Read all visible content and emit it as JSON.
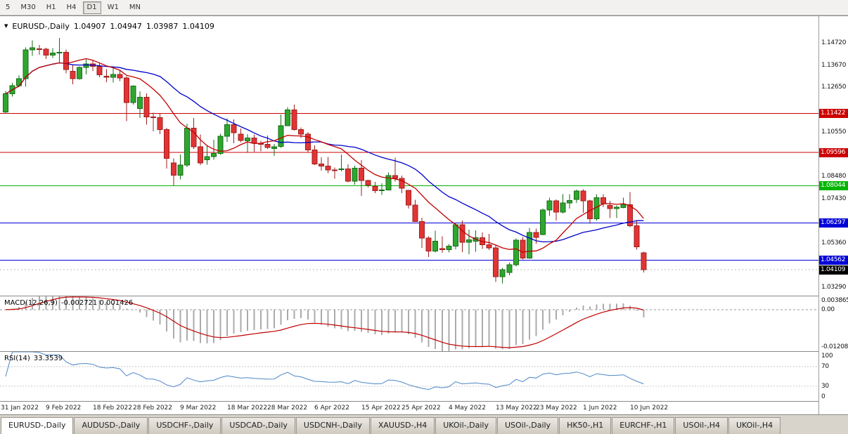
{
  "toolbar": {
    "timeframes": [
      {
        "label": "5",
        "active": false
      },
      {
        "label": "M30",
        "active": false
      },
      {
        "label": "H1",
        "active": false
      },
      {
        "label": "H4",
        "active": false
      },
      {
        "label": "D1",
        "active": true
      },
      {
        "label": "W1",
        "active": false
      },
      {
        "label": "MN",
        "active": false
      }
    ]
  },
  "chart": {
    "title": {
      "icon": "▼",
      "symbol": "EURUSD-,Daily",
      "open": "1.04907",
      "high": "1.04947",
      "low": "1.03987",
      "close": "1.04109"
    },
    "price_axis_ticks": [
      "1.14720",
      "1.13670",
      "1.12650",
      "1.10550",
      "1.08480",
      "1.07430",
      "1.05360",
      "1.03290"
    ],
    "levels": [
      {
        "value": "1.11422",
        "price": 1.11422,
        "color": "#CC0000"
      },
      {
        "value": "1.09596",
        "price": 1.09596,
        "color": "#CC0000"
      },
      {
        "value": "1.08044",
        "price": 1.08044,
        "color": "#00B400"
      },
      {
        "value": "1.06297",
        "price": 1.06297,
        "color": "#0000D8"
      },
      {
        "value": "1.04562",
        "price": 1.04562,
        "color": "#0000D8"
      }
    ],
    "current_price": {
      "value": "1.04109",
      "price": 1.04109,
      "badge_color": "#000000"
    },
    "colors": {
      "up": "#2FA62F",
      "up_border": "#156E15",
      "down": "#E23434",
      "down_border": "#9E1F1F"
    }
  },
  "macd": {
    "label": "MACD(12,26,9)",
    "values": "-0.002721 0.001426",
    "fast": 12,
    "slow": 26,
    "signal": 9,
    "axis_max": "0.003865",
    "axis_zero": "0.00",
    "axis_min": "-0.01208",
    "ylim": [
      -0.01208,
      0.003865
    ],
    "bar_color": "#ABABAB",
    "signal_color": "#C00000"
  },
  "rsi": {
    "label": "RSI(14)",
    "value": "33.3539",
    "period": 14,
    "axis": [
      "100",
      "70",
      "30",
      "0"
    ],
    "levels": [
      70,
      30
    ],
    "line_color": "#4C86C6"
  },
  "tabs": [
    {
      "label": "EURUSD-,Daily",
      "active": true
    },
    {
      "label": "AUDUSD-,Daily",
      "active": false
    },
    {
      "label": "USDCHF-,Daily",
      "active": false
    },
    {
      "label": "USDCAD-,Daily",
      "active": false
    },
    {
      "label": "USDCNH-,Daily",
      "active": false
    },
    {
      "label": "XAUUSD-,H4",
      "active": false
    },
    {
      "label": "UKOil-,Daily",
      "active": false
    },
    {
      "label": "USOil-,Daily",
      "active": false
    },
    {
      "label": "HK50-,H1",
      "active": false
    },
    {
      "label": "EURCHF-,H1",
      "active": false
    },
    {
      "label": "USOil-,H4",
      "active": false
    },
    {
      "label": "UKOil-,H4",
      "active": false
    }
  ],
  "chart_data": {
    "type": "candlestick",
    "title": "EURUSD-,Daily",
    "ylim": [
      1.029,
      1.1597
    ],
    "ma": [
      {
        "name": "MA slow",
        "period": 21,
        "color": "#0000C8"
      },
      {
        "name": "MA fast",
        "period": 10,
        "color": "#C00000"
      }
    ],
    "x_ticks": [
      {
        "label": "31 Jan 2022",
        "i": 0
      },
      {
        "label": "9 Feb 2022",
        "i": 7
      },
      {
        "label": "18 Feb 2022",
        "i": 14
      },
      {
        "label": "28 Feb 2022",
        "i": 20
      },
      {
        "label": "9 Mar 2022",
        "i": 27
      },
      {
        "label": "18 Mar 2022",
        "i": 34
      },
      {
        "label": "28 Mar 2022",
        "i": 40
      },
      {
        "label": "6 Apr 2022",
        "i": 47
      },
      {
        "label": "15 Apr 2022",
        "i": 54
      },
      {
        "label": "25 Apr 2022",
        "i": 60
      },
      {
        "label": "4 May 2022",
        "i": 67
      },
      {
        "label": "13 May 2022",
        "i": 74
      },
      {
        "label": "23 May 2022",
        "i": 80
      },
      {
        "label": "1 Jun 2022",
        "i": 87
      },
      {
        "label": "10 Jun 2022",
        "i": 94
      }
    ],
    "ohlc": [
      [
        1.1148,
        1.1248,
        1.114,
        1.1234
      ],
      [
        1.1234,
        1.1285,
        1.1221,
        1.1272
      ],
      [
        1.1272,
        1.1319,
        1.1265,
        1.1304
      ],
      [
        1.1304,
        1.1451,
        1.1267,
        1.144
      ],
      [
        1.144,
        1.1483,
        1.1411,
        1.145
      ],
      [
        1.1445,
        1.1462,
        1.1417,
        1.1442
      ],
      [
        1.1442,
        1.1449,
        1.1396,
        1.1415
      ],
      [
        1.1415,
        1.1448,
        1.1402,
        1.1424
      ],
      [
        1.1424,
        1.1495,
        1.1375,
        1.1428
      ],
      [
        1.1428,
        1.1441,
        1.133,
        1.1348
      ],
      [
        1.134,
        1.1369,
        1.1279,
        1.1305
      ],
      [
        1.1305,
        1.1362,
        1.13,
        1.1358
      ],
      [
        1.1358,
        1.1395,
        1.1324,
        1.1374
      ],
      [
        1.1374,
        1.1392,
        1.1341,
        1.1362
      ],
      [
        1.1362,
        1.138,
        1.1312,
        1.1323
      ],
      [
        1.1316,
        1.1349,
        1.1288,
        1.1311
      ],
      [
        1.1311,
        1.1359,
        1.1287,
        1.1324
      ],
      [
        1.1324,
        1.1342,
        1.1293,
        1.1308
      ],
      [
        1.1308,
        1.1317,
        1.1106,
        1.1193
      ],
      [
        1.1193,
        1.1274,
        1.1184,
        1.127
      ],
      [
        1.1165,
        1.1246,
        1.1121,
        1.1218
      ],
      [
        1.1218,
        1.1235,
        1.109,
        1.1125
      ],
      [
        1.1125,
        1.1146,
        1.1058,
        1.1122
      ],
      [
        1.1122,
        1.1142,
        1.1045,
        1.1066
      ],
      [
        1.1066,
        1.1075,
        1.0885,
        1.0932
      ],
      [
        1.091,
        1.0932,
        1.0806,
        1.0853
      ],
      [
        1.0853,
        1.095,
        1.0834,
        1.0901
      ],
      [
        1.0901,
        1.1095,
        1.0891,
        1.1073
      ],
      [
        1.1073,
        1.1121,
        1.0977,
        1.0987
      ],
      [
        1.0987,
        1.1043,
        1.0901,
        1.0911
      ],
      [
        1.0925,
        1.0993,
        1.0903,
        1.0941
      ],
      [
        1.0941,
        1.1019,
        1.0925,
        1.0955
      ],
      [
        1.0955,
        1.1047,
        1.0949,
        1.1035
      ],
      [
        1.1035,
        1.1119,
        1.1009,
        1.109
      ],
      [
        1.109,
        1.1114,
        1.1003,
        1.1052
      ],
      [
        1.1045,
        1.1071,
        1.1008,
        1.1015
      ],
      [
        1.1015,
        1.1046,
        1.0962,
        1.1028
      ],
      [
        1.1028,
        1.1044,
        1.0963,
        1.1003
      ],
      [
        1.1003,
        1.1014,
        1.0965,
        1.0997
      ],
      [
        1.0997,
        1.1039,
        1.0977,
        1.0983
      ],
      [
        1.0978,
        1.1,
        1.0944,
        1.0987
      ],
      [
        1.0987,
        1.1137,
        1.0982,
        1.1084
      ],
      [
        1.1084,
        1.1171,
        1.1083,
        1.1158
      ],
      [
        1.1158,
        1.1184,
        1.1061,
        1.1067
      ],
      [
        1.1067,
        1.1077,
        1.1027,
        1.1045
      ],
      [
        1.1045,
        1.1055,
        1.096,
        1.0972
      ],
      [
        1.0972,
        1.0993,
        1.09,
        1.0905
      ],
      [
        1.0905,
        1.0937,
        1.0874,
        1.0896
      ],
      [
        1.0896,
        1.0939,
        1.0863,
        1.0878
      ],
      [
        1.0878,
        1.089,
        1.0836,
        1.0876
      ],
      [
        1.088,
        1.095,
        1.0872,
        1.0883
      ],
      [
        1.0883,
        1.0904,
        1.0821,
        1.0826
      ],
      [
        1.0826,
        1.0897,
        1.0809,
        1.0886
      ],
      [
        1.0886,
        1.0924,
        1.0757,
        1.0828
      ],
      [
        1.0828,
        1.0832,
        1.0796,
        1.0807
      ],
      [
        1.08,
        1.0822,
        1.0769,
        1.0781
      ],
      [
        1.0781,
        1.0815,
        1.0761,
        1.0785
      ],
      [
        1.0785,
        1.0867,
        1.0782,
        1.0852
      ],
      [
        1.0852,
        1.0936,
        1.0824,
        1.0838
      ],
      [
        1.0838,
        1.0852,
        1.077,
        1.0793
      ],
      [
        1.0782,
        1.0784,
        1.0697,
        1.0713
      ],
      [
        1.0713,
        1.0738,
        1.0635,
        1.0637
      ],
      [
        1.0637,
        1.0655,
        1.0514,
        1.0559
      ],
      [
        1.0559,
        1.0568,
        1.0471,
        1.0498
      ],
      [
        1.0498,
        1.0593,
        1.0492,
        1.0545
      ],
      [
        1.051,
        1.0568,
        1.049,
        1.0505
      ],
      [
        1.0505,
        1.0532,
        1.0492,
        1.0521
      ],
      [
        1.0521,
        1.0632,
        1.0507,
        1.0622
      ],
      [
        1.0622,
        1.0642,
        1.0493,
        1.054
      ],
      [
        1.054,
        1.0599,
        1.0483,
        1.0551
      ],
      [
        1.0545,
        1.0595,
        1.0495,
        1.0561
      ],
      [
        1.0561,
        1.0585,
        1.0509,
        1.0528
      ],
      [
        1.0528,
        1.0579,
        1.0503,
        1.0514
      ],
      [
        1.0514,
        1.0525,
        1.0354,
        1.0379
      ],
      [
        1.0379,
        1.042,
        1.0348,
        1.0412
      ],
      [
        1.0398,
        1.0445,
        1.0385,
        1.0434
      ],
      [
        1.0434,
        1.0557,
        1.0427,
        1.0549
      ],
      [
        1.0549,
        1.0564,
        1.0459,
        1.0465
      ],
      [
        1.0465,
        1.0607,
        1.0462,
        1.0586
      ],
      [
        1.0586,
        1.0604,
        1.0533,
        1.0563
      ],
      [
        1.0575,
        1.0697,
        1.0572,
        1.0691
      ],
      [
        1.0691,
        1.0748,
        1.0663,
        1.0734
      ],
      [
        1.0734,
        1.074,
        1.0642,
        1.068
      ],
      [
        1.068,
        1.0765,
        1.0675,
        1.0724
      ],
      [
        1.0724,
        1.0764,
        1.0697,
        1.0735
      ],
      [
        1.074,
        1.0786,
        1.0724,
        1.0779
      ],
      [
        1.0779,
        1.0787,
        1.0678,
        1.0734
      ],
      [
        1.0734,
        1.0739,
        1.0627,
        1.065
      ],
      [
        1.065,
        1.0764,
        1.0641,
        1.0748
      ],
      [
        1.0748,
        1.0765,
        1.0704,
        1.072
      ],
      [
        1.0712,
        1.0733,
        1.0653,
        1.0697
      ],
      [
        1.0697,
        1.0712,
        1.0653,
        1.0703
      ],
      [
        1.0703,
        1.0748,
        1.0699,
        1.0716
      ],
      [
        1.0716,
        1.0774,
        1.0611,
        1.0617
      ],
      [
        1.0617,
        1.0642,
        1.0505,
        1.0518
      ],
      [
        1.04907,
        1.04947,
        1.03987,
        1.04109
      ]
    ]
  }
}
